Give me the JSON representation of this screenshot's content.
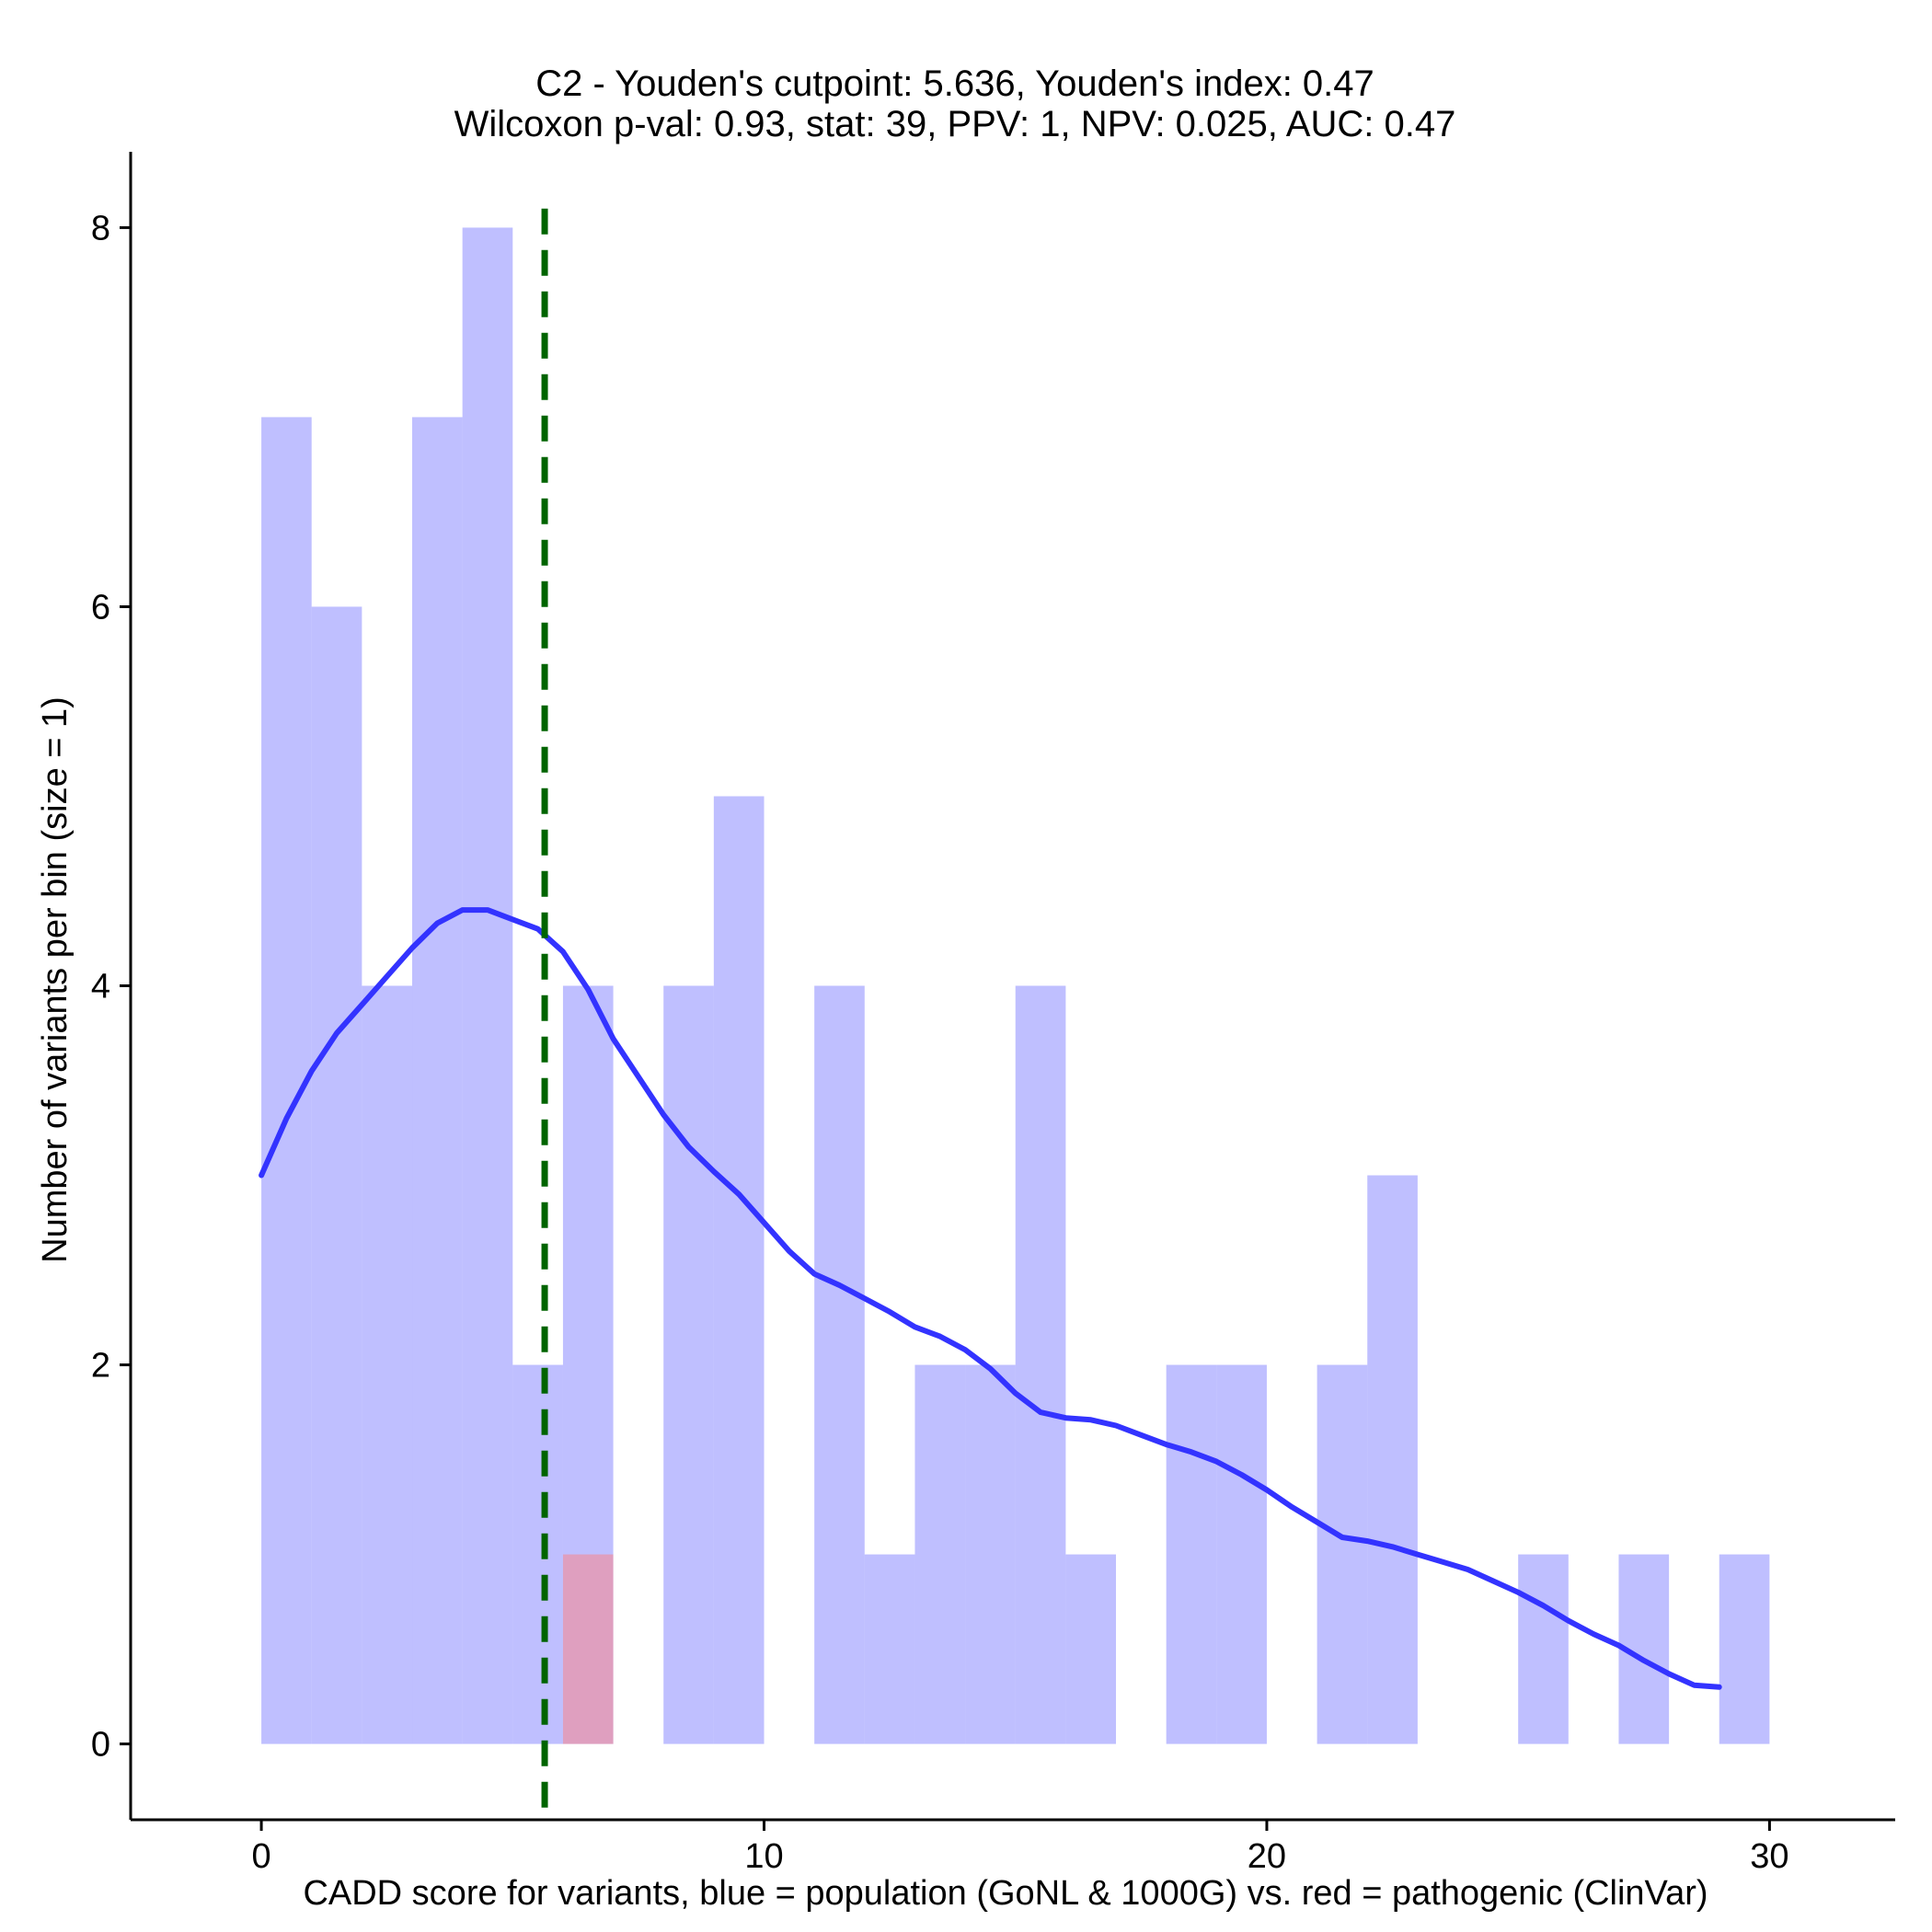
{
  "chart_data": {
    "type": "bar",
    "title": {
      "line1": "C2 - Youden's cutpoint: 5.636, Youden's index: 0.47",
      "line2": "Wilcoxon p-val: 0.93, stat: 39, PPV: 1, NPV: 0.025, AUC: 0.47"
    },
    "xlabel": "CADD score for variants, blue = population (GoNL & 1000G) vs. red = pathogenic (ClinVar)",
    "ylabel": "Number of variants per bin (size = 1)",
    "xlim": [
      -2.6,
      32.5
    ],
    "ylim": [
      -0.4,
      8.4
    ],
    "x_ticks": [
      {
        "value": 0,
        "label": "0"
      },
      {
        "value": 10,
        "label": "10"
      },
      {
        "value": 20,
        "label": "20"
      },
      {
        "value": 30,
        "label": "30"
      }
    ],
    "y_ticks": [
      {
        "value": 0,
        "label": "0"
      },
      {
        "value": 2,
        "label": "2"
      },
      {
        "value": 4,
        "label": "4"
      },
      {
        "value": 6,
        "label": "6"
      },
      {
        "value": 8,
        "label": "8"
      }
    ],
    "bin_width": 1,
    "series": [
      {
        "name": "population (GoNL & 1000G)",
        "color": "#8080ff",
        "opacity": 0.5,
        "bins": [
          {
            "start": 0,
            "count": 7
          },
          {
            "start": 1,
            "count": 6
          },
          {
            "start": 2,
            "count": 4
          },
          {
            "start": 3,
            "count": 7
          },
          {
            "start": 4,
            "count": 8
          },
          {
            "start": 5,
            "count": 2
          },
          {
            "start": 6,
            "count": 4
          },
          {
            "start": 8,
            "count": 4
          },
          {
            "start": 9,
            "count": 5
          },
          {
            "start": 11,
            "count": 4
          },
          {
            "start": 12,
            "count": 1
          },
          {
            "start": 13,
            "count": 2
          },
          {
            "start": 14,
            "count": 2
          },
          {
            "start": 15,
            "count": 4
          },
          {
            "start": 16,
            "count": 1
          },
          {
            "start": 18,
            "count": 2
          },
          {
            "start": 19,
            "count": 2
          },
          {
            "start": 21,
            "count": 2
          },
          {
            "start": 22,
            "count": 3
          },
          {
            "start": 25,
            "count": 1
          },
          {
            "start": 27,
            "count": 1
          },
          {
            "start": 29,
            "count": 1
          }
        ]
      },
      {
        "name": "pathogenic (ClinVar)",
        "color": "#ff8080",
        "opacity": 0.5,
        "bins": [
          {
            "start": 6,
            "count": 1
          }
        ]
      }
    ],
    "density_curve": {
      "color": "#3333ff",
      "points": [
        [
          0,
          3.0
        ],
        [
          0.5,
          3.3
        ],
        [
          1,
          3.55
        ],
        [
          1.5,
          3.75
        ],
        [
          2,
          3.9
        ],
        [
          2.5,
          4.05
        ],
        [
          3,
          4.2
        ],
        [
          3.5,
          4.33
        ],
        [
          4,
          4.4
        ],
        [
          4.5,
          4.4
        ],
        [
          5,
          4.35
        ],
        [
          5.5,
          4.3
        ],
        [
          6,
          4.18
        ],
        [
          6.5,
          3.98
        ],
        [
          7,
          3.72
        ],
        [
          7.5,
          3.52
        ],
        [
          8,
          3.32
        ],
        [
          8.5,
          3.15
        ],
        [
          9,
          3.02
        ],
        [
          9.5,
          2.9
        ],
        [
          10,
          2.75
        ],
        [
          10.5,
          2.6
        ],
        [
          11,
          2.48
        ],
        [
          11.5,
          2.42
        ],
        [
          12,
          2.35
        ],
        [
          12.5,
          2.28
        ],
        [
          13,
          2.2
        ],
        [
          13.5,
          2.15
        ],
        [
          14,
          2.08
        ],
        [
          14.5,
          1.98
        ],
        [
          15,
          1.85
        ],
        [
          15.5,
          1.75
        ],
        [
          16,
          1.72
        ],
        [
          16.5,
          1.71
        ],
        [
          17,
          1.68
        ],
        [
          17.5,
          1.63
        ],
        [
          18,
          1.58
        ],
        [
          18.5,
          1.54
        ],
        [
          19,
          1.49
        ],
        [
          19.5,
          1.42
        ],
        [
          20,
          1.34
        ],
        [
          20.5,
          1.25
        ],
        [
          21,
          1.17
        ],
        [
          21.5,
          1.09
        ],
        [
          22,
          1.07
        ],
        [
          22.5,
          1.04
        ],
        [
          23,
          1.0
        ],
        [
          23.5,
          0.96
        ],
        [
          24,
          0.92
        ],
        [
          24.5,
          0.86
        ],
        [
          25,
          0.8
        ],
        [
          25.5,
          0.73
        ],
        [
          26,
          0.65
        ],
        [
          26.5,
          0.58
        ],
        [
          27,
          0.52
        ],
        [
          27.5,
          0.44
        ],
        [
          28,
          0.37
        ],
        [
          28.5,
          0.31
        ],
        [
          29,
          0.3
        ]
      ]
    },
    "cutpoint": {
      "value": 5.636,
      "color": "#006400",
      "style": "dashed"
    }
  }
}
